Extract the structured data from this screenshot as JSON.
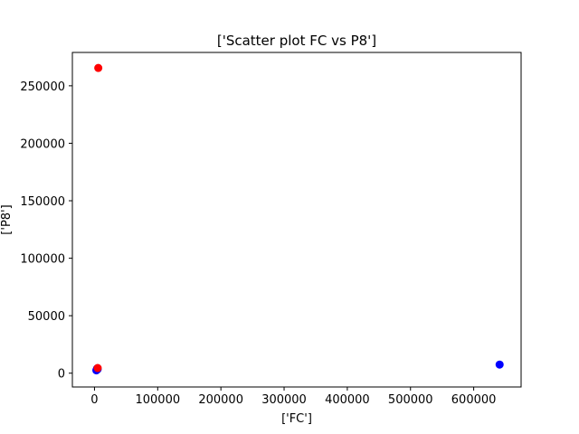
{
  "chart_data": {
    "type": "scatter",
    "title": "['Scatter plot FC vs P8']",
    "xlabel": "['FC']",
    "ylabel": "['P8']",
    "xlim": [
      -35000,
      675000
    ],
    "ylim": [
      -12000,
      279000
    ],
    "xticks": [
      0,
      100000,
      200000,
      300000,
      400000,
      500000,
      600000
    ],
    "xtick_labels": [
      "0",
      "100000",
      "200000",
      "300000",
      "400000",
      "500000",
      "600000"
    ],
    "yticks": [
      0,
      50000,
      100000,
      150000,
      200000,
      250000
    ],
    "ytick_labels": [
      "0",
      "50000",
      "100000",
      "150000",
      "200000",
      "250000"
    ],
    "grid": false,
    "series": [
      {
        "color": "#0000ff",
        "points": [
          {
            "x": 3000,
            "y": 2500
          },
          {
            "x": 4000,
            "y": 4000
          },
          {
            "x": 5000,
            "y": 3500
          },
          {
            "x": 641000,
            "y": 7500
          }
        ]
      },
      {
        "color": "#ff0000",
        "points": [
          {
            "x": 5000,
            "y": 4500
          },
          {
            "x": 6000,
            "y": 265500
          }
        ]
      }
    ]
  }
}
